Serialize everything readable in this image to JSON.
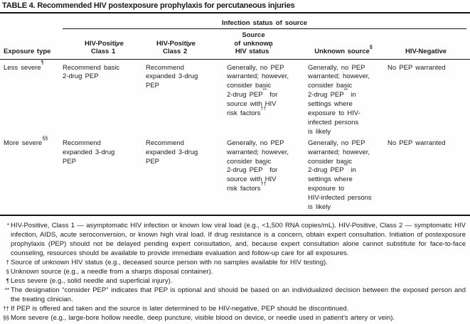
{
  "colors": {
    "ink": "#1b1b1b",
    "background": "#fefefe"
  },
  "title": "TABLE 4. Recommended HIV postexposure prophylaxis for percutaneous injuries",
  "table": {
    "span_header": "Infection status of source",
    "columns": [
      "Exposure type",
      "HIV-Positive\nClass 1*",
      "HIV-Positive\nClass 2*",
      "Source\nof unknown\nHIV status†",
      "Unknown source§",
      "HIV-Negative"
    ],
    "rows": [
      {
        "label": "Less severe¶",
        "cells": [
          "Recommend basic\n2-drug PEP",
          "Recommend\nexpanded 3-drug\nPEP",
          "Generally, no PEP\nwarranted; however,\nconsider basic\n2-drug PEP** for\nsource with HIV\nrisk factors††",
          "Generally, no PEP\nwarranted; however,\nconsider basic\n2-drug PEP** in\nsettings where\nexposure to HIV-\ninfected persons\nis likely",
          "No PEP warranted"
        ]
      },
      {
        "label": "More severe§§",
        "cells": [
          "Recommend\nexpanded 3-drug\nPEP",
          "Recommend\nexpanded 3-drug\nPEP",
          "Generally, no PEP\nwarranted; however,\nconsider basic\n2-drug PEP** for\nsource with HIV\nrisk factors††",
          "Generally, no PEP\nwarranted; however,\nconsider basic\n2-drug PEP** in\nsettings where\nexposure to\nHIV-infected persons\nis likely",
          "No PEP warranted"
        ]
      }
    ]
  },
  "footnotes": [
    {
      "marker": "*",
      "text": "HIV-Positive, Class 1 — asymptomatic HIV infection or known low viral load (e.g., <1,500 RNA copies/mL). HIV-Positive, Class 2 — symptomatic HIV infection, AIDS, acute seroconversion, or known high viral load. If drug resistance is a concern, obtain expert consultation. Initiation of postexposure prophylaxis (PEP) should not be delayed pending expert consultation, and, because expert consultation alone cannot substitute for face-to-face counseling, resources should be available to provide immediate evaluation and follow-up care for all exposures."
    },
    {
      "marker": "†",
      "text": "Source of unknown HIV status (e.g., deceased source person with no samples available for HIV testing)."
    },
    {
      "marker": "§",
      "text": "Unknown source (e.g., a needle from a sharps disposal container)."
    },
    {
      "marker": "¶",
      "text": "Less severe (e.g., solid needle and superficial injury)."
    },
    {
      "marker": "**",
      "text": "The designation “consider PEP” indicates that PEP is optional and should be based on an individualized decision between the exposed person and the treating clinician."
    },
    {
      "marker": "††",
      "text": "If PEP is offered and taken and the source is later determined to be HIV-negative, PEP should be discontinued."
    },
    {
      "marker": "§§",
      "text": "More severe (e.g., large-bore hollow needle, deep puncture, visible blood on device, or needle used in patient’s artery or vein)."
    }
  ]
}
